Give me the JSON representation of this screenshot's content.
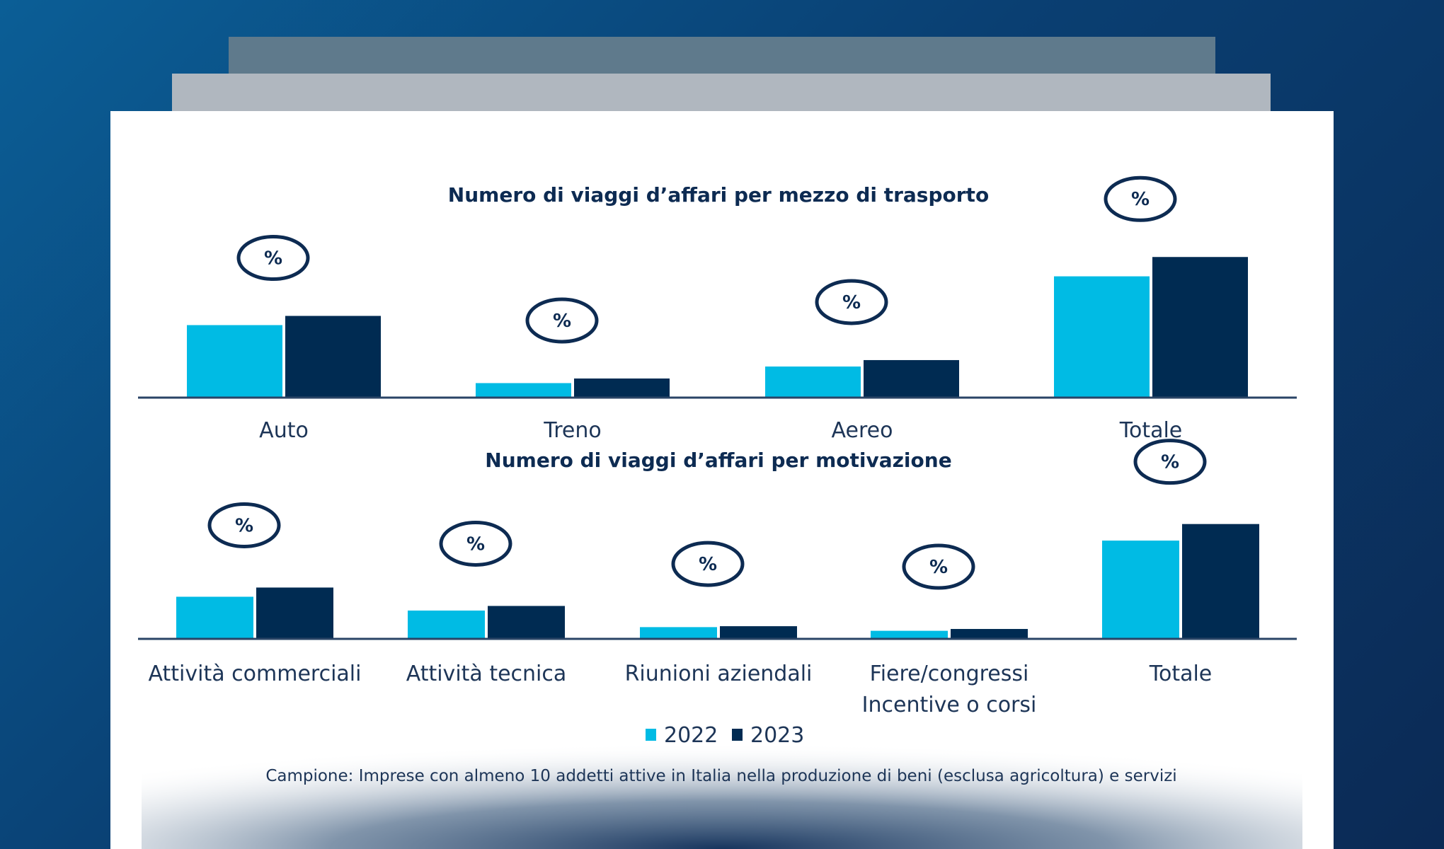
{
  "colors": {
    "2022": "#00bbe4",
    "2023": "#002b52",
    "text": "#0d2b52"
  },
  "legend": [
    {
      "label": "2022",
      "color": "#00bbe4"
    },
    {
      "label": "2023",
      "color": "#002b52"
    }
  ],
  "footnote": "Campione: Imprese con almeno 10 addetti attive in Italia nella produzione di beni (esclusa agricoltura) e servizi",
  "chart_data": [
    {
      "type": "bar",
      "title": "Numero di viaggi d’affari per mezzo di trasporto",
      "categories": [
        "Auto",
        "Treno",
        "Aereo",
        "Totale"
      ],
      "bubble_label": "%",
      "series": [
        {
          "name": "2022",
          "values": [
            78,
            15,
            33,
            131
          ]
        },
        {
          "name": "2023",
          "values": [
            88,
            20,
            40,
            152
          ]
        }
      ],
      "y_axis": "unlabeled (relative heights)",
      "grid": false,
      "legend_position": "bottom"
    },
    {
      "type": "bar",
      "title": "Numero di viaggi d’affari per motivazione",
      "categories": [
        [
          "Attività commerciali"
        ],
        [
          "Attività tecnica"
        ],
        [
          "Riunioni aziendali"
        ],
        [
          "Fiere/congressi",
          "Incentive o corsi"
        ],
        [
          "Totale"
        ]
      ],
      "bubble_label": "%",
      "series": [
        {
          "name": "2022",
          "values": [
            45,
            30,
            12,
            8,
            106
          ]
        },
        {
          "name": "2023",
          "values": [
            55,
            35,
            13,
            10,
            124
          ]
        }
      ],
      "y_axis": "unlabeled (relative heights)",
      "grid": false,
      "legend_position": "bottom"
    }
  ]
}
